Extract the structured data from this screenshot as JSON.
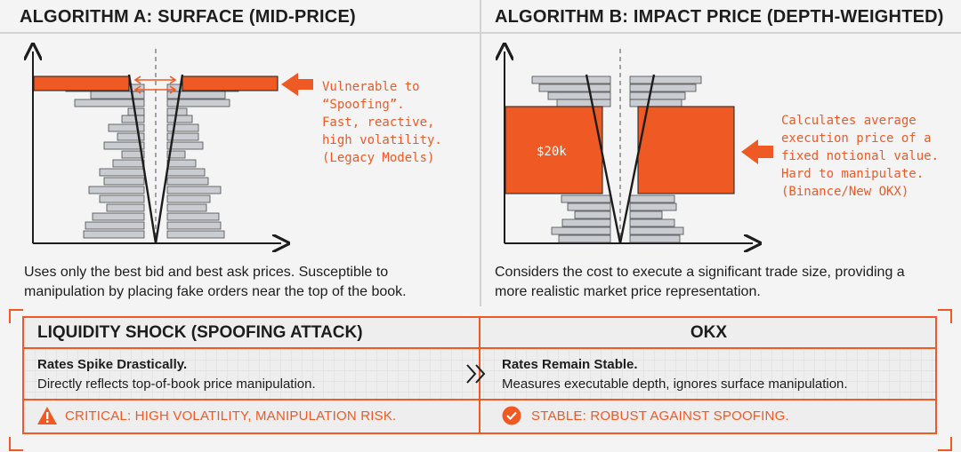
{
  "panel_a": {
    "title": "ALGORITHM A: SURFACE (MID-PRICE)",
    "note": "Vulnerable to\n“Spoofing”.\nFast, reactive,\nhigh volatility.\n(Legacy Models)",
    "description": "Uses only the best bid and best ask prices. Susceptible to manipulation by placing fake orders near the top of the book."
  },
  "panel_b": {
    "title": "ALGORITHM B: IMPACT PRICE (DEPTH-WEIGHTED)",
    "depth_label": "$20k",
    "note": "Calculates average\nexecution price of a\nfixed notional value.\nHard to manipulate.\n(Binance/New OKX)",
    "description": "Considers the cost to execute a significant trade size, providing a more realistic market price representation."
  },
  "comparison": {
    "left_header": "LIQUIDITY SHOCK (SPOOFING ATTACK)",
    "right_header": "OKX",
    "left_title": "Rates Spike Drastically.",
    "left_sub": "Directly reflects top-of-book price manipulation.",
    "right_title": "Rates Remain Stable.",
    "right_sub": "Measures executable depth, ignores surface manipulation.",
    "left_status": "CRITICAL: HIGH VOLATILITY, MANIPULATION RISK.",
    "right_status": "STABLE: ROBUST AGAINST SPOOFING."
  },
  "colors": {
    "accent": "#ef5a24",
    "bar_fill": "#c9ccd1",
    "ink": "#1d1d1d"
  },
  "icons": {
    "chevron": "double-chevron-right-icon",
    "warning": "warning-triangle-icon",
    "check": "check-circle-icon"
  }
}
